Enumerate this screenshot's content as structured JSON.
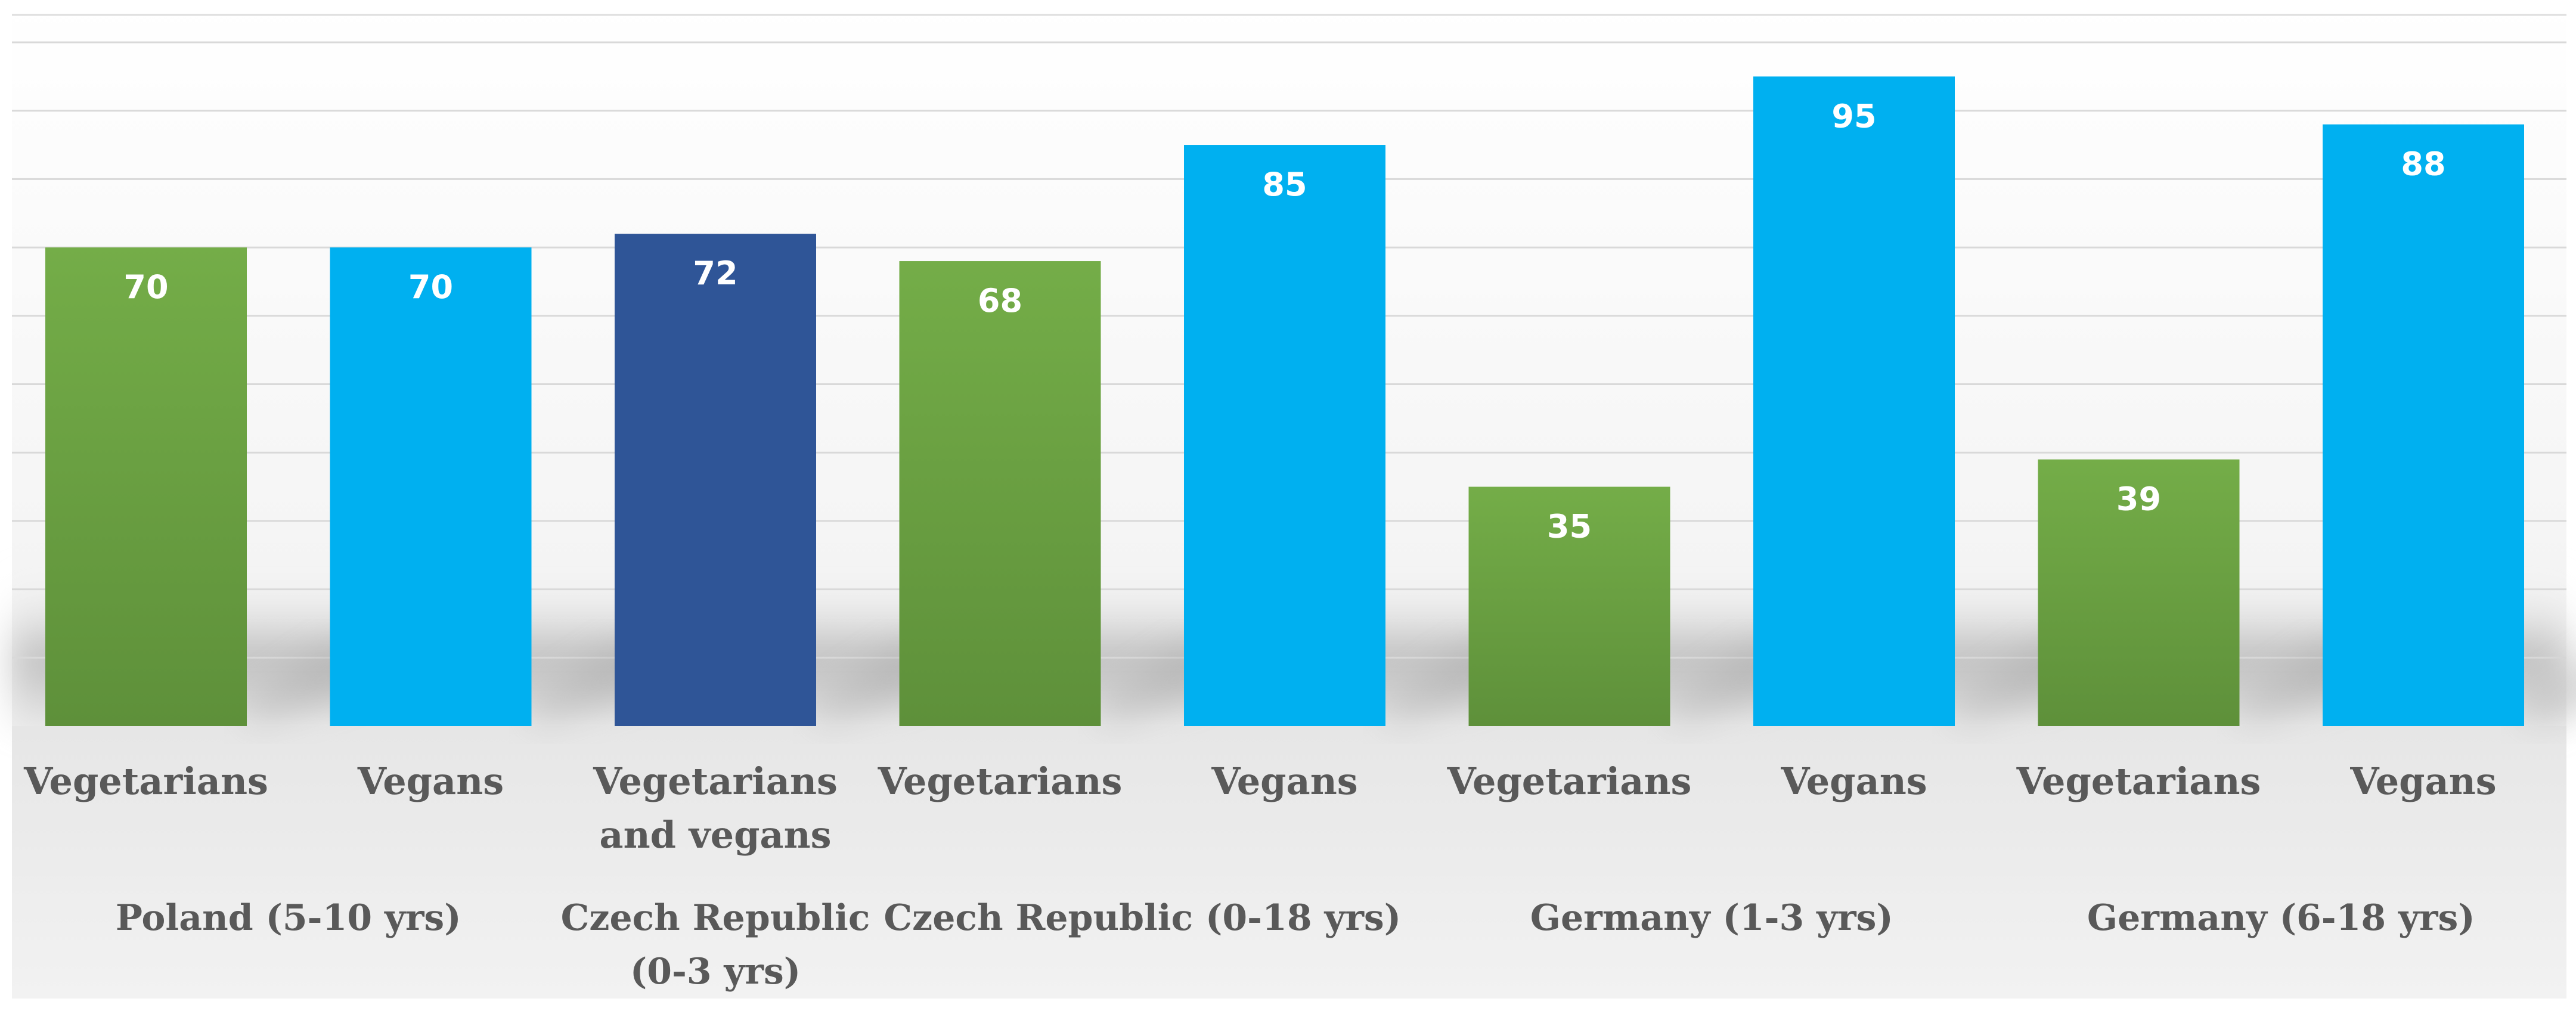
{
  "chart_data": {
    "type": "bar",
    "title": "",
    "xlabel": "",
    "ylabel": "",
    "ylim": [
      0,
      100
    ],
    "gridlines": true,
    "y_ticks": [
      10,
      20,
      30,
      40,
      50,
      60,
      70,
      80,
      90,
      100
    ],
    "bars": [
      {
        "category": "Vegetarians",
        "group": "Poland  (5-10 yrs)",
        "value": 70,
        "series": "Vegetarians"
      },
      {
        "category": "Vegans",
        "group": "Poland  (5-10 yrs)",
        "value": 70,
        "series": "Vegans"
      },
      {
        "category": "Vegetarians and vegans",
        "group": "Czech Republic (0-3 yrs)",
        "value": 72,
        "series": "Vegetarians and vegans"
      },
      {
        "category": "Vegetarians",
        "group": "Czech Republic (0-18 yrs)",
        "value": 68,
        "series": "Vegetarians"
      },
      {
        "category": "Vegans",
        "group": "Czech Republic (0-18 yrs)",
        "value": 85,
        "series": "Vegans"
      },
      {
        "category": "Vegetarians",
        "group": "Germany (1-3 yrs)",
        "value": 35,
        "series": "Vegetarians"
      },
      {
        "category": "Vegans",
        "group": "Germany (1-3 yrs)",
        "value": 95,
        "series": "Vegans"
      },
      {
        "category": "Vegetarians",
        "group": "Germany (6-18 yrs)",
        "value": 39,
        "series": "Vegetarians"
      },
      {
        "category": "Vegans",
        "group": "Germany (6-18 yrs)",
        "value": 88,
        "series": "Vegans"
      }
    ],
    "category_labels": [
      [
        "Vegetarians"
      ],
      [
        "Vegans"
      ],
      [
        "Vegetarians",
        "and vegans"
      ],
      [
        "Vegetarians"
      ],
      [
        "Vegans"
      ],
      [
        "Vegetarians"
      ],
      [
        "Vegans"
      ],
      [
        "Vegetarians"
      ],
      [
        "Vegans"
      ]
    ],
    "groups": [
      {
        "lines": [
          "Poland  (5-10 yrs)"
        ],
        "bars": [
          0,
          1
        ]
      },
      {
        "lines": [
          "Czech Republic",
          "(0-3 yrs)"
        ],
        "bars": [
          2
        ]
      },
      {
        "lines": [
          "Czech Republic (0-18 yrs)"
        ],
        "bars": [
          3,
          4
        ]
      },
      {
        "lines": [
          "Germany (1-3 yrs)"
        ],
        "bars": [
          5,
          6
        ]
      },
      {
        "lines": [
          "Germany (6-18 yrs)"
        ],
        "bars": [
          7,
          8
        ]
      }
    ],
    "series_colors": {
      "Vegetarians": {
        "top": "#74ad48",
        "bottom": "#5e903a"
      },
      "Vegans": {
        "top": "#00b0f0",
        "bottom": "#00b0f0"
      },
      "Vegetarians and vegans": {
        "top": "#2f5597",
        "bottom": "#2f5597"
      }
    }
  }
}
